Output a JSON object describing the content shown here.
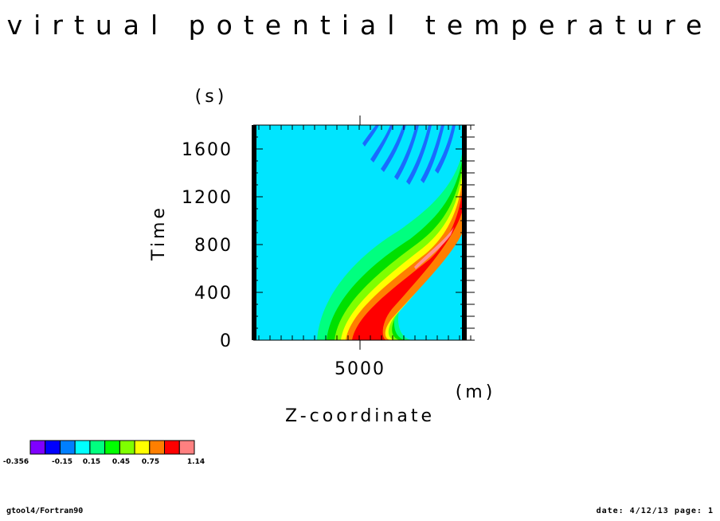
{
  "chart_data": {
    "type": "heatmap",
    "title": "virtual potential temperature",
    "xlabel": "Z-coordinate",
    "xunit": "(m)",
    "ylabel": "Time",
    "yunit": "(s)",
    "x_ticks": [
      5000
    ],
    "y_ticks": [
      0,
      400,
      800,
      1200,
      1600
    ],
    "xlim": [
      1700,
      11000
    ],
    "ylim": [
      0,
      1800
    ],
    "colorbar": {
      "levels": [
        "-0.356",
        "-0.15",
        "0.15",
        "0.45",
        "0.75",
        "1.14"
      ],
      "colors": [
        "#7f00ff",
        "#0000ff",
        "#007fff",
        "#00ffff",
        "#00ff7f",
        "#00ff00",
        "#7fff00",
        "#ffff00",
        "#ff7f00",
        "#ff0000",
        "#ff8080"
      ]
    },
    "background_color": "#00e5ff",
    "feature": "warm anomaly band (1.14 max) starting near z=5000 m at t=0 and curving toward upper boundary by t=1800 s; small negative wave trains near top after t=1300 s"
  },
  "footer": {
    "left": "gtool4/Fortran90",
    "right": "date: 4/12/13 page: 1"
  }
}
